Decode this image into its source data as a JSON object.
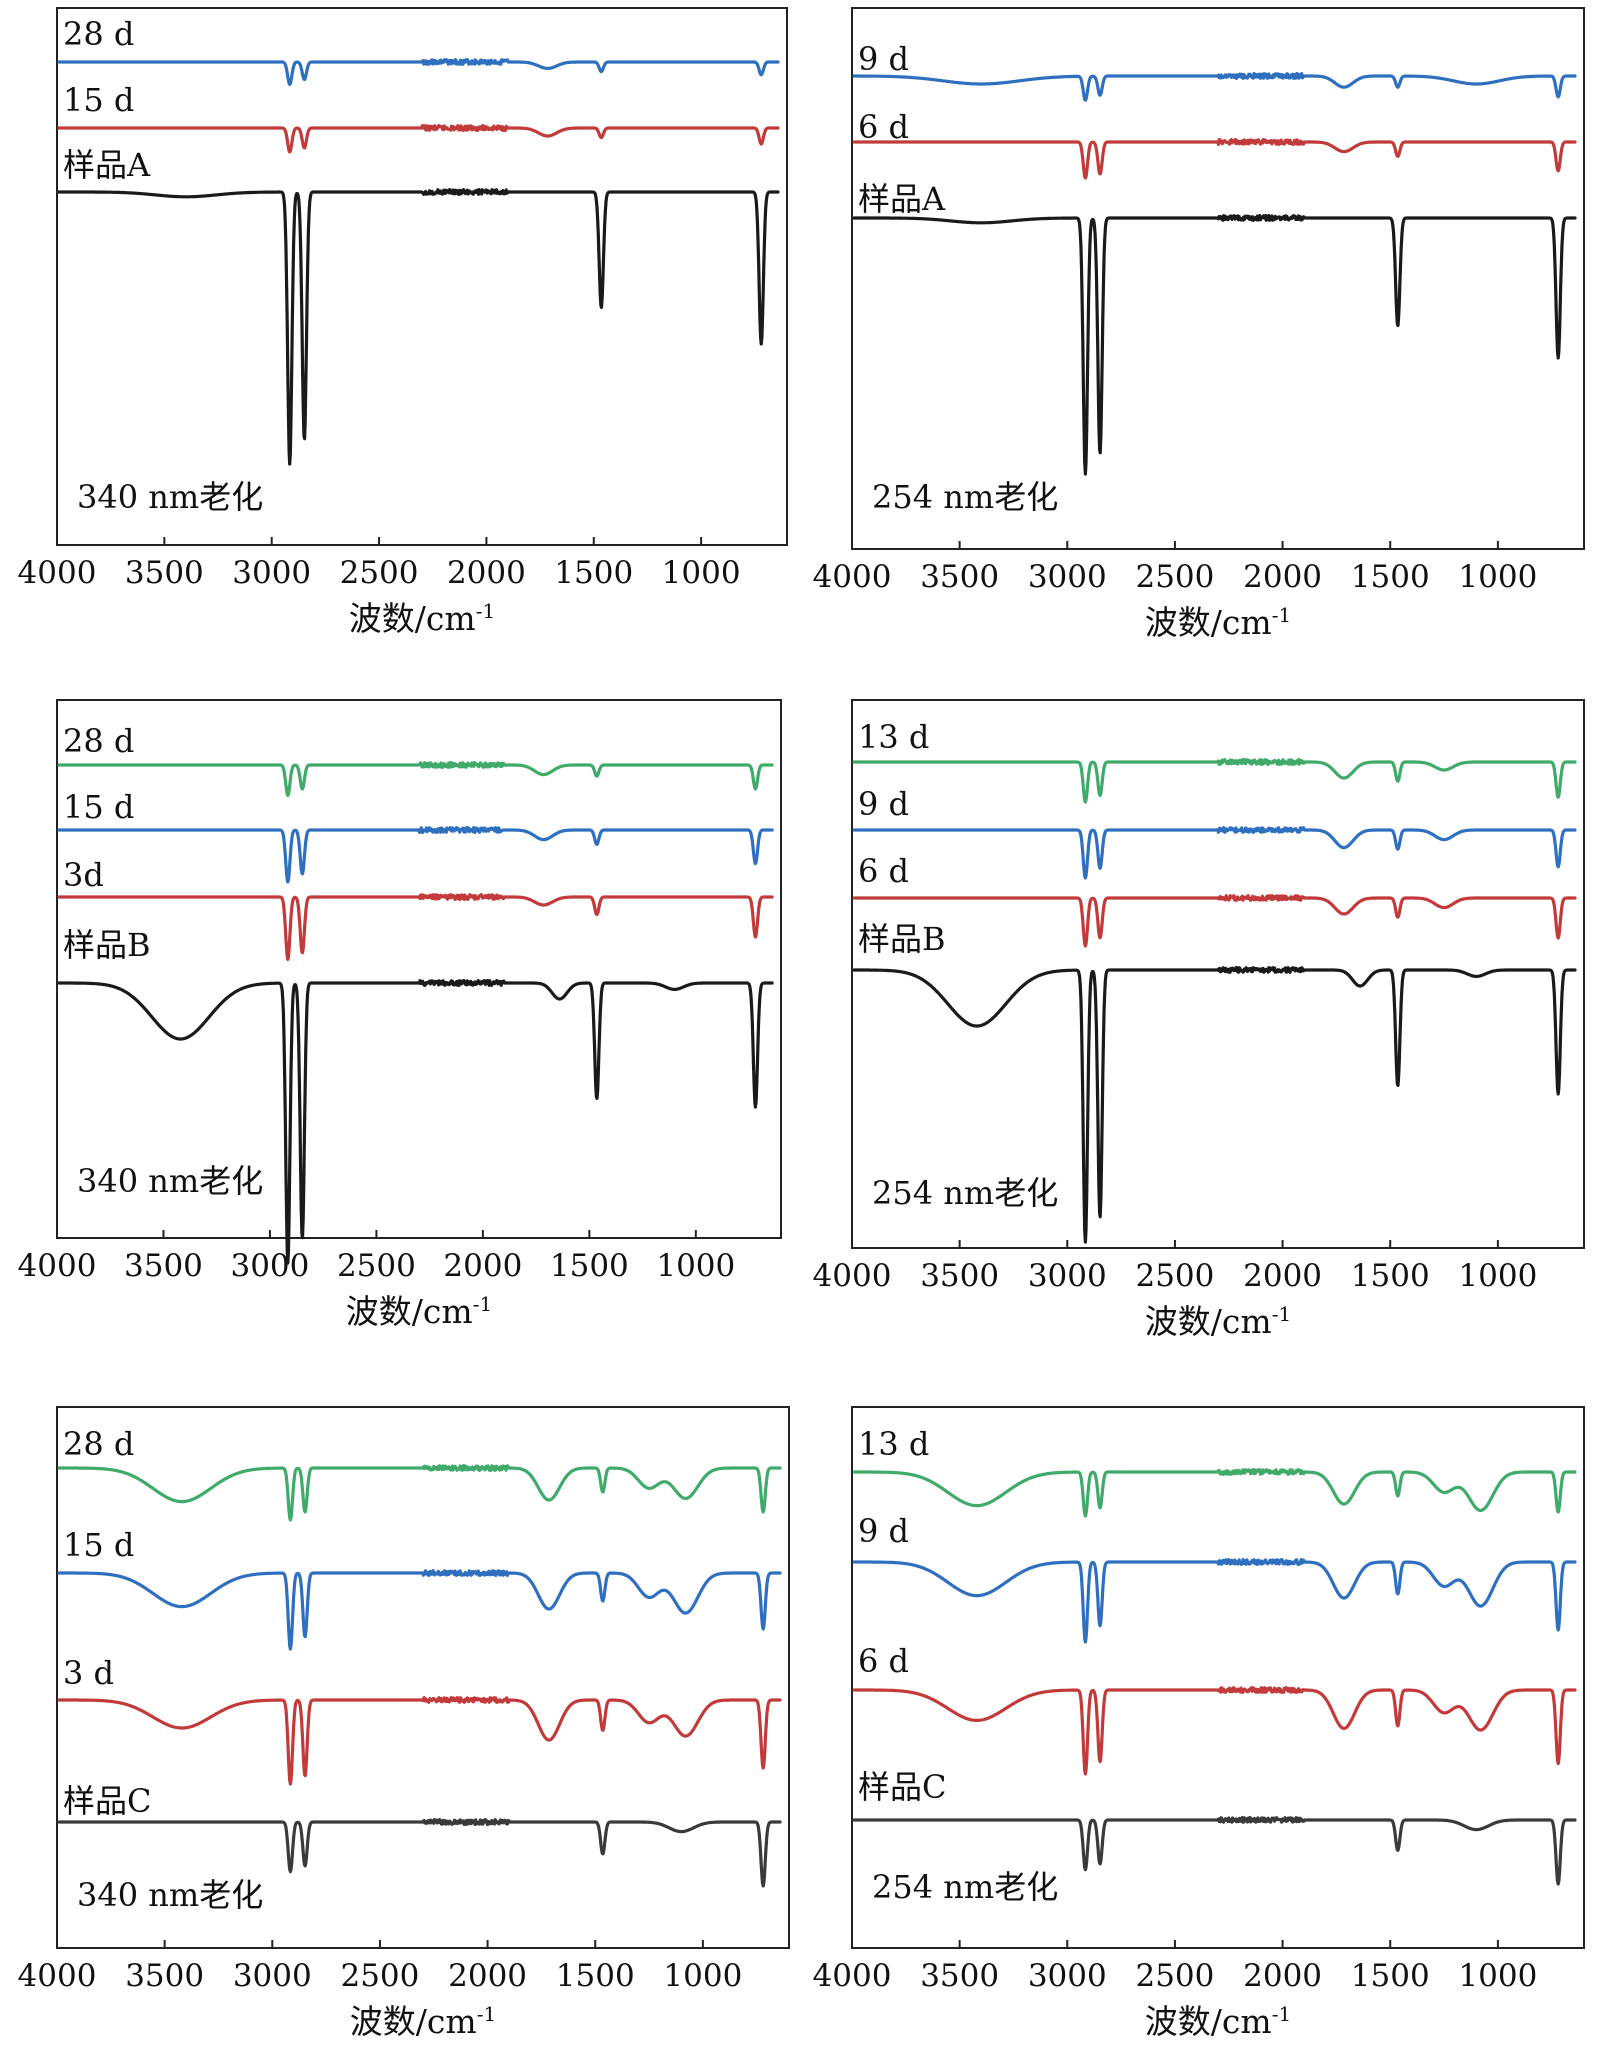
{
  "chart_data": [
    {
      "type": "line",
      "condition_label": "340 nm老化",
      "xlabel": "波数/cm",
      "xlabel_sup": "-1",
      "xlim": [
        4000,
        600
      ],
      "x_ticks": [
        4000,
        3500,
        3000,
        2500,
        2000,
        1500,
        1000
      ],
      "series": [
        {
          "name": "28 d",
          "color": "#2e6fc0",
          "peaks": [
            {
              "x": 2916,
              "depth": 0.28
            },
            {
              "x": 2848,
              "depth": 0.22
            },
            {
              "x": 1465,
              "depth": 0.12
            },
            {
              "x": 720,
              "depth": 0.16
            }
          ],
          "bands": [
            {
              "x": 1715,
              "depth": 0.08,
              "width": 60
            }
          ]
        },
        {
          "name": "15 d",
          "color": "#c23a3a",
          "peaks": [
            {
              "x": 2916,
              "depth": 0.3
            },
            {
              "x": 2848,
              "depth": 0.25
            },
            {
              "x": 1465,
              "depth": 0.12
            },
            {
              "x": 720,
              "depth": 0.2
            }
          ],
          "bands": [
            {
              "x": 1715,
              "depth": 0.1,
              "width": 60
            }
          ]
        },
        {
          "name": "样品A",
          "color": "#1a1a1a",
          "peaks": [
            {
              "x": 2916,
              "depth": 3.4
            },
            {
              "x": 2848,
              "depth": 3.1
            },
            {
              "x": 1465,
              "depth": 1.45
            },
            {
              "x": 720,
              "depth": 1.9
            }
          ],
          "bands": [
            {
              "x": 3400,
              "depth": 0.06,
              "width": 200
            }
          ]
        }
      ]
    },
    {
      "type": "line",
      "condition_label": "254 nm老化",
      "xlabel": "波数/cm",
      "xlabel_sup": "-1",
      "xlim": [
        4000,
        600
      ],
      "x_ticks": [
        4000,
        3500,
        3000,
        2500,
        2000,
        1500,
        1000
      ],
      "series": [
        {
          "name": "9 d",
          "color": "#2e6fc0",
          "peaks": [
            {
              "x": 2916,
              "depth": 0.3
            },
            {
              "x": 2848,
              "depth": 0.24
            },
            {
              "x": 1465,
              "depth": 0.14
            },
            {
              "x": 720,
              "depth": 0.26
            }
          ],
          "bands": [
            {
              "x": 1715,
              "depth": 0.14,
              "width": 60
            },
            {
              "x": 3400,
              "depth": 0.1,
              "width": 250
            },
            {
              "x": 1100,
              "depth": 0.1,
              "width": 150
            }
          ]
        },
        {
          "name": "6 d",
          "color": "#c23a3a",
          "peaks": [
            {
              "x": 2916,
              "depth": 0.45
            },
            {
              "x": 2848,
              "depth": 0.4
            },
            {
              "x": 1465,
              "depth": 0.18
            },
            {
              "x": 720,
              "depth": 0.36
            }
          ],
          "bands": [
            {
              "x": 1715,
              "depth": 0.12,
              "width": 60
            }
          ]
        },
        {
          "name": "样品A",
          "color": "#1a1a1a",
          "peaks": [
            {
              "x": 2916,
              "depth": 3.2
            },
            {
              "x": 2848,
              "depth": 2.95
            },
            {
              "x": 1465,
              "depth": 1.35
            },
            {
              "x": 720,
              "depth": 1.75
            }
          ],
          "bands": [
            {
              "x": 3400,
              "depth": 0.06,
              "width": 200
            }
          ]
        }
      ]
    },
    {
      "type": "line",
      "condition_label": "340 nm老化",
      "xlabel": "波数/cm",
      "xlabel_sup": "-1",
      "xlim": [
        4000,
        600
      ],
      "x_ticks": [
        4000,
        3500,
        3000,
        2500,
        2000,
        1500,
        1000
      ],
      "series": [
        {
          "name": "28 d",
          "color": "#3faa6a",
          "peaks": [
            {
              "x": 2916,
              "depth": 0.38
            },
            {
              "x": 2848,
              "depth": 0.3
            },
            {
              "x": 1465,
              "depth": 0.14
            },
            {
              "x": 720,
              "depth": 0.3
            }
          ],
          "bands": [
            {
              "x": 1715,
              "depth": 0.12,
              "width": 60
            }
          ]
        },
        {
          "name": "15 d",
          "color": "#2e6fc0",
          "peaks": [
            {
              "x": 2916,
              "depth": 0.65
            },
            {
              "x": 2848,
              "depth": 0.55
            },
            {
              "x": 1465,
              "depth": 0.18
            },
            {
              "x": 720,
              "depth": 0.42
            }
          ],
          "bands": [
            {
              "x": 1715,
              "depth": 0.12,
              "width": 60
            }
          ]
        },
        {
          "name": "3d",
          "color": "#c23a3a",
          "peaks": [
            {
              "x": 2916,
              "depth": 0.78
            },
            {
              "x": 2848,
              "depth": 0.7
            },
            {
              "x": 1465,
              "depth": 0.22
            },
            {
              "x": 720,
              "depth": 0.5
            }
          ],
          "bands": [
            {
              "x": 1715,
              "depth": 0.1,
              "width": 60
            }
          ]
        },
        {
          "name": "样品B",
          "color": "#1a1a1a",
          "peaks": [
            {
              "x": 2916,
              "depth": 3.5
            },
            {
              "x": 2848,
              "depth": 3.2
            },
            {
              "x": 1465,
              "depth": 1.45
            },
            {
              "x": 720,
              "depth": 1.55
            }
          ],
          "bands": [
            {
              "x": 3420,
              "depth": 0.7,
              "width": 190
            },
            {
              "x": 1640,
              "depth": 0.2,
              "width": 50
            },
            {
              "x": 1100,
              "depth": 0.08,
              "width": 60
            }
          ]
        }
      ]
    },
    {
      "type": "line",
      "condition_label": "254 nm老化",
      "xlabel": "波数/cm",
      "xlabel_sup": "-1",
      "xlim": [
        4000,
        600
      ],
      "x_ticks": [
        4000,
        3500,
        3000,
        2500,
        2000,
        1500,
        1000
      ],
      "series": [
        {
          "name": "13 d",
          "color": "#3faa6a",
          "peaks": [
            {
              "x": 2916,
              "depth": 0.5
            },
            {
              "x": 2848,
              "depth": 0.42
            },
            {
              "x": 1465,
              "depth": 0.24
            },
            {
              "x": 720,
              "depth": 0.44
            }
          ],
          "bands": [
            {
              "x": 1715,
              "depth": 0.2,
              "width": 60
            },
            {
              "x": 1250,
              "depth": 0.1,
              "width": 60
            }
          ]
        },
        {
          "name": "9 d",
          "color": "#2e6fc0",
          "peaks": [
            {
              "x": 2916,
              "depth": 0.6
            },
            {
              "x": 2848,
              "depth": 0.48
            },
            {
              "x": 1465,
              "depth": 0.24
            },
            {
              "x": 720,
              "depth": 0.46
            }
          ],
          "bands": [
            {
              "x": 1715,
              "depth": 0.22,
              "width": 60
            },
            {
              "x": 1250,
              "depth": 0.12,
              "width": 60
            }
          ]
        },
        {
          "name": "6 d",
          "color": "#c23a3a",
          "peaks": [
            {
              "x": 2916,
              "depth": 0.6
            },
            {
              "x": 2848,
              "depth": 0.5
            },
            {
              "x": 1465,
              "depth": 0.24
            },
            {
              "x": 720,
              "depth": 0.5
            }
          ],
          "bands": [
            {
              "x": 1715,
              "depth": 0.2,
              "width": 60
            },
            {
              "x": 1250,
              "depth": 0.12,
              "width": 60
            }
          ]
        },
        {
          "name": "样品B",
          "color": "#1a1a1a",
          "peaks": [
            {
              "x": 2916,
              "depth": 3.4
            },
            {
              "x": 2848,
              "depth": 3.1
            },
            {
              "x": 1465,
              "depth": 1.45
            },
            {
              "x": 720,
              "depth": 1.55
            }
          ],
          "bands": [
            {
              "x": 3420,
              "depth": 0.7,
              "width": 190
            },
            {
              "x": 1640,
              "depth": 0.2,
              "width": 50
            },
            {
              "x": 1100,
              "depth": 0.08,
              "width": 60
            }
          ]
        }
      ]
    },
    {
      "type": "line",
      "condition_label": "340 nm老化",
      "xlabel": "波数/cm",
      "xlabel_sup": "-1",
      "xlim": [
        4000,
        600
      ],
      "x_ticks": [
        4000,
        3500,
        3000,
        2500,
        2000,
        1500,
        1000
      ],
      "series": [
        {
          "name": "28 d",
          "color": "#3faa6a",
          "peaks": [
            {
              "x": 2916,
              "depth": 0.65
            },
            {
              "x": 2848,
              "depth": 0.55
            },
            {
              "x": 1465,
              "depth": 0.3
            },
            {
              "x": 720,
              "depth": 0.55
            }
          ],
          "bands": [
            {
              "x": 3420,
              "depth": 0.42,
              "width": 190
            },
            {
              "x": 1715,
              "depth": 0.4,
              "width": 70
            },
            {
              "x": 1250,
              "depth": 0.25,
              "width": 70
            },
            {
              "x": 1080,
              "depth": 0.38,
              "width": 80
            }
          ]
        },
        {
          "name": "15 d",
          "color": "#2e6fc0",
          "peaks": [
            {
              "x": 2916,
              "depth": 0.95
            },
            {
              "x": 2848,
              "depth": 0.8
            },
            {
              "x": 1465,
              "depth": 0.35
            },
            {
              "x": 720,
              "depth": 0.7
            }
          ],
          "bands": [
            {
              "x": 3420,
              "depth": 0.42,
              "width": 190
            },
            {
              "x": 1715,
              "depth": 0.45,
              "width": 70
            },
            {
              "x": 1250,
              "depth": 0.3,
              "width": 70
            },
            {
              "x": 1080,
              "depth": 0.5,
              "width": 80
            }
          ]
        },
        {
          "name": "3 d",
          "color": "#c23a3a",
          "peaks": [
            {
              "x": 2916,
              "depth": 1.05
            },
            {
              "x": 2848,
              "depth": 0.95
            },
            {
              "x": 1465,
              "depth": 0.38
            },
            {
              "x": 720,
              "depth": 0.85
            }
          ],
          "bands": [
            {
              "x": 3420,
              "depth": 0.35,
              "width": 190
            },
            {
              "x": 1715,
              "depth": 0.5,
              "width": 70
            },
            {
              "x": 1250,
              "depth": 0.28,
              "width": 70
            },
            {
              "x": 1080,
              "depth": 0.45,
              "width": 80
            }
          ]
        },
        {
          "name": "样品C",
          "color": "#3a3a3a",
          "peaks": [
            {
              "x": 2916,
              "depth": 0.62
            },
            {
              "x": 2848,
              "depth": 0.55
            },
            {
              "x": 1465,
              "depth": 0.4
            },
            {
              "x": 720,
              "depth": 0.8
            }
          ],
          "bands": [
            {
              "x": 1100,
              "depth": 0.12,
              "width": 80
            }
          ]
        }
      ]
    },
    {
      "type": "line",
      "condition_label": "254 nm老化",
      "xlabel": "波数/cm",
      "xlabel_sup": "-1",
      "xlim": [
        4000,
        600
      ],
      "x_ticks": [
        4000,
        3500,
        3000,
        2500,
        2000,
        1500,
        1000
      ],
      "series": [
        {
          "name": "13 d",
          "color": "#3faa6a",
          "peaks": [
            {
              "x": 2916,
              "depth": 0.55
            },
            {
              "x": 2848,
              "depth": 0.45
            },
            {
              "x": 1465,
              "depth": 0.3
            },
            {
              "x": 720,
              "depth": 0.5
            }
          ],
          "bands": [
            {
              "x": 3420,
              "depth": 0.42,
              "width": 190
            },
            {
              "x": 1715,
              "depth": 0.4,
              "width": 70
            },
            {
              "x": 1250,
              "depth": 0.25,
              "width": 70
            },
            {
              "x": 1080,
              "depth": 0.48,
              "width": 80
            }
          ]
        },
        {
          "name": "9 d",
          "color": "#2e6fc0",
          "peaks": [
            {
              "x": 2916,
              "depth": 1.0
            },
            {
              "x": 2848,
              "depth": 0.8
            },
            {
              "x": 1465,
              "depth": 0.4
            },
            {
              "x": 720,
              "depth": 0.85
            }
          ],
          "bands": [
            {
              "x": 3420,
              "depth": 0.42,
              "width": 190
            },
            {
              "x": 1715,
              "depth": 0.45,
              "width": 70
            },
            {
              "x": 1250,
              "depth": 0.3,
              "width": 70
            },
            {
              "x": 1080,
              "depth": 0.55,
              "width": 80
            }
          ]
        },
        {
          "name": "6 d",
          "color": "#c23a3a",
          "peaks": [
            {
              "x": 2916,
              "depth": 1.05
            },
            {
              "x": 2848,
              "depth": 0.9
            },
            {
              "x": 1465,
              "depth": 0.45
            },
            {
              "x": 720,
              "depth": 0.92
            }
          ],
          "bands": [
            {
              "x": 3420,
              "depth": 0.38,
              "width": 190
            },
            {
              "x": 1715,
              "depth": 0.48,
              "width": 70
            },
            {
              "x": 1250,
              "depth": 0.28,
              "width": 70
            },
            {
              "x": 1080,
              "depth": 0.5,
              "width": 80
            }
          ]
        },
        {
          "name": "样品C",
          "color": "#3a3a3a",
          "peaks": [
            {
              "x": 2916,
              "depth": 0.62
            },
            {
              "x": 2848,
              "depth": 0.55
            },
            {
              "x": 1465,
              "depth": 0.38
            },
            {
              "x": 720,
              "depth": 0.8
            }
          ],
          "bands": [
            {
              "x": 1100,
              "depth": 0.12,
              "width": 80
            }
          ]
        }
      ]
    }
  ]
}
